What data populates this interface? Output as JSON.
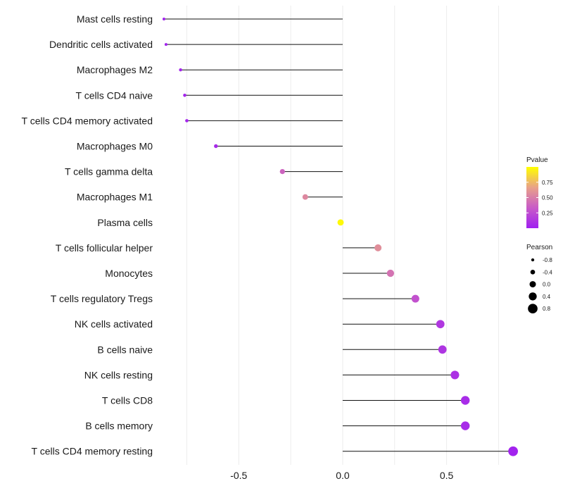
{
  "chart_data": {
    "type": "lollipop",
    "title": "",
    "xlabel": "",
    "ylabel": "",
    "xlim": [
      -0.87,
      0.84
    ],
    "x_ticks": [
      -0.5,
      0.0,
      0.5
    ],
    "x_tick_labels": [
      "-0.5",
      "0.0",
      "0.5"
    ],
    "grid": "vertical",
    "baseline": 0.0,
    "points": [
      {
        "category": "Mast cells resting",
        "pearson": -0.86,
        "pvalue": 0.02
      },
      {
        "category": "Dendritic cells activated",
        "pearson": -0.85,
        "pvalue": 0.02
      },
      {
        "category": "Macrophages M2",
        "pearson": -0.78,
        "pvalue": 0.03
      },
      {
        "category": "T cells CD4 naive",
        "pearson": -0.76,
        "pvalue": 0.03
      },
      {
        "category": "T cells CD4 memory activated",
        "pearson": -0.75,
        "pvalue": 0.03
      },
      {
        "category": "Macrophages M0",
        "pearson": -0.61,
        "pvalue": 0.06
      },
      {
        "category": "T cells gamma delta",
        "pearson": -0.29,
        "pvalue": 0.38
      },
      {
        "category": "Macrophages M1",
        "pearson": -0.18,
        "pvalue": 0.55
      },
      {
        "category": "Plasma cells",
        "pearson": -0.01,
        "pvalue": 0.98
      },
      {
        "category": "T cells follicular helper",
        "pearson": 0.17,
        "pvalue": 0.58
      },
      {
        "category": "Monocytes",
        "pearson": 0.23,
        "pvalue": 0.45
      },
      {
        "category": "T cells regulatory  Tregs ",
        "pearson": 0.35,
        "pvalue": 0.28
      },
      {
        "category": "NK cells activated",
        "pearson": 0.47,
        "pvalue": 0.13
      },
      {
        "category": "B cells naive",
        "pearson": 0.48,
        "pvalue": 0.12
      },
      {
        "category": "NK cells resting",
        "pearson": 0.54,
        "pvalue": 0.1
      },
      {
        "category": "T cells CD8",
        "pearson": 0.59,
        "pvalue": 0.07
      },
      {
        "category": "B cells memory",
        "pearson": 0.59,
        "pvalue": 0.07
      },
      {
        "category": "T cells CD4 memory resting",
        "pearson": 0.82,
        "pvalue": 0.02
      }
    ],
    "legend": {
      "color": {
        "title": "Pvalue",
        "ticks": [
          0.25,
          0.5,
          0.75
        ],
        "tick_labels": [
          "0.25",
          "0.50",
          "0.75"
        ],
        "range": [
          0.0,
          1.0
        ],
        "colors": [
          "#a020f0",
          "#c85ac8",
          "#e8a08a",
          "#ffff00"
        ],
        "placement": "right"
      },
      "size": {
        "title": "Pearson",
        "values": [
          -0.8,
          -0.4,
          0.0,
          0.4,
          0.8
        ],
        "labels": [
          "-0.8",
          "-0.4",
          "0.0",
          "0.4",
          "0.8"
        ],
        "placement": "right"
      }
    }
  }
}
